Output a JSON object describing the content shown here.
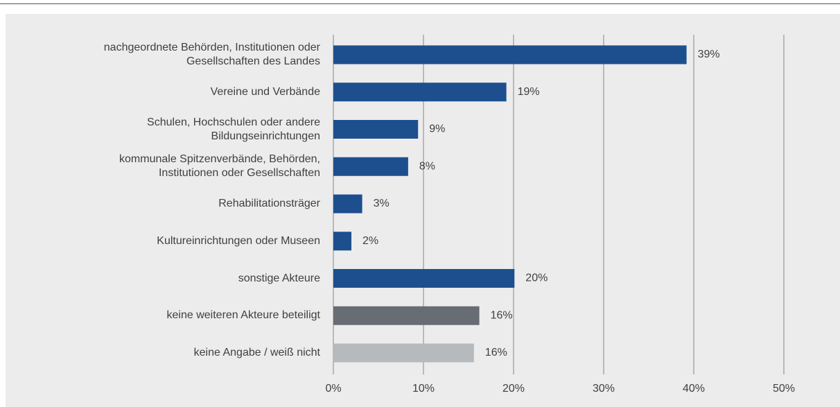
{
  "chart_data": {
    "type": "barh",
    "categories": [
      "nachgeordnete Behörden, Institutionen oder\nGesellschaften des Landes",
      "Vereine und Verbände",
      "Schulen, Hochschulen oder andere\nBildungseinrichtungen",
      "kommunale Spitzenverbände, Behörden,\nInstitutionen oder Gesellschaften",
      "Rehabilitationsträger",
      "Kultureinrichtungen oder Museen",
      "sonstige Akteure",
      "keine weiteren Akteure beteiligt",
      "keine Angabe / weiß nicht"
    ],
    "values": [
      39.2,
      19.2,
      9.4,
      8.3,
      3.2,
      2.0,
      20.1,
      16.2,
      15.6
    ],
    "value_labels": [
      "39%",
      "19%",
      "9%",
      "8%",
      "3%",
      "2%",
      "20%",
      "16%",
      "16%"
    ],
    "colors": [
      "#1d4f8f",
      "#1d4f8f",
      "#1d4f8f",
      "#1d4f8f",
      "#1d4f8f",
      "#1d4f8f",
      "#1d4f8f",
      "#686c73",
      "#b7babd"
    ],
    "xlim": [
      0,
      50
    ],
    "xticks": [
      {
        "value": 0,
        "label": "0%"
      },
      {
        "value": 10,
        "label": "10%"
      },
      {
        "value": 20,
        "label": "20%"
      },
      {
        "value": 30,
        "label": "30%"
      },
      {
        "value": 40,
        "label": "40%"
      },
      {
        "value": 50,
        "label": "50%"
      }
    ],
    "grid": true
  }
}
